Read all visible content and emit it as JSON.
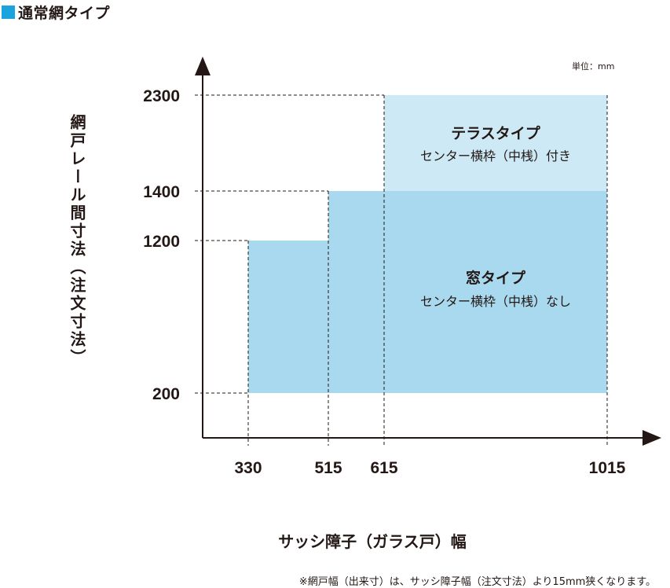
{
  "header": {
    "title": "通常網タイプ",
    "marker_color": "#1aa3dc"
  },
  "chart_data": {
    "type": "area",
    "ylabel": "網戸レール間寸法（注文寸法）",
    "xlabel": "サッシ障子（ガラス戸）幅",
    "unit": "単位：mm",
    "x_ticks": [
      330,
      515,
      615,
      1015
    ],
    "y_ticks": [
      200,
      1200,
      1400,
      2300
    ],
    "regions": [
      {
        "name": "窓タイプ",
        "description": "センター横枠（中桟）なし",
        "color": "#a8d9ef",
        "boundary": [
          {
            "x": 330,
            "y": 200
          },
          {
            "x": 330,
            "y": 1200
          },
          {
            "x": 515,
            "y": 1200
          },
          {
            "x": 515,
            "y": 1400
          },
          {
            "x": 1015,
            "y": 1400
          },
          {
            "x": 1015,
            "y": 200
          }
        ]
      },
      {
        "name": "テラスタイプ",
        "description": "センター横枠（中桟）付き",
        "color": "#cde9f5",
        "boundary": [
          {
            "x": 615,
            "y": 1400
          },
          {
            "x": 615,
            "y": 2300
          },
          {
            "x": 1015,
            "y": 2300
          },
          {
            "x": 1015,
            "y": 1400
          }
        ]
      }
    ]
  },
  "footnote": "※網戸幅（出来寸）は、サッシ障子幅（注文寸法）より15mm狭くなります。"
}
